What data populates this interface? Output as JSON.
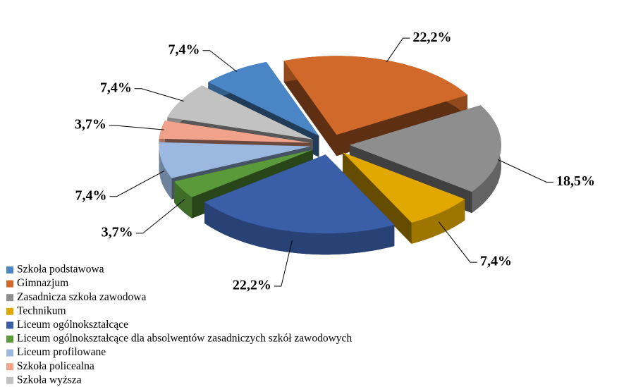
{
  "chart_data": {
    "type": "pie3d",
    "categories": [
      "Szkoła podstawowa",
      "Gimnazjum",
      "Zasadnicza szkoła zawodowa",
      "Technikum",
      "Liceum ogólnokształcące",
      "Liceum ogólnokształcące dla absolwentów zasadniczych szkół zawodowych",
      "Liceum profilowane",
      "Szkoła policealna",
      "Szkoła wyższa"
    ],
    "values": [
      7.4,
      22.2,
      18.5,
      7.4,
      22.2,
      3.7,
      7.4,
      3.7,
      7.4
    ],
    "value_labels": [
      "7,4%",
      "22,2%",
      "18,5%",
      "7,4%",
      "22,2%",
      "3,7%",
      "7,4%",
      "3,7%",
      "7,4%"
    ],
    "colors": [
      "#4a86c5",
      "#d0692a",
      "#8e8e8e",
      "#e0a800",
      "#3a5ea8",
      "#5a9a3a",
      "#9bb9e0",
      "#f0a28a",
      "#c2c2c2"
    ],
    "legend": "bottom-left"
  }
}
